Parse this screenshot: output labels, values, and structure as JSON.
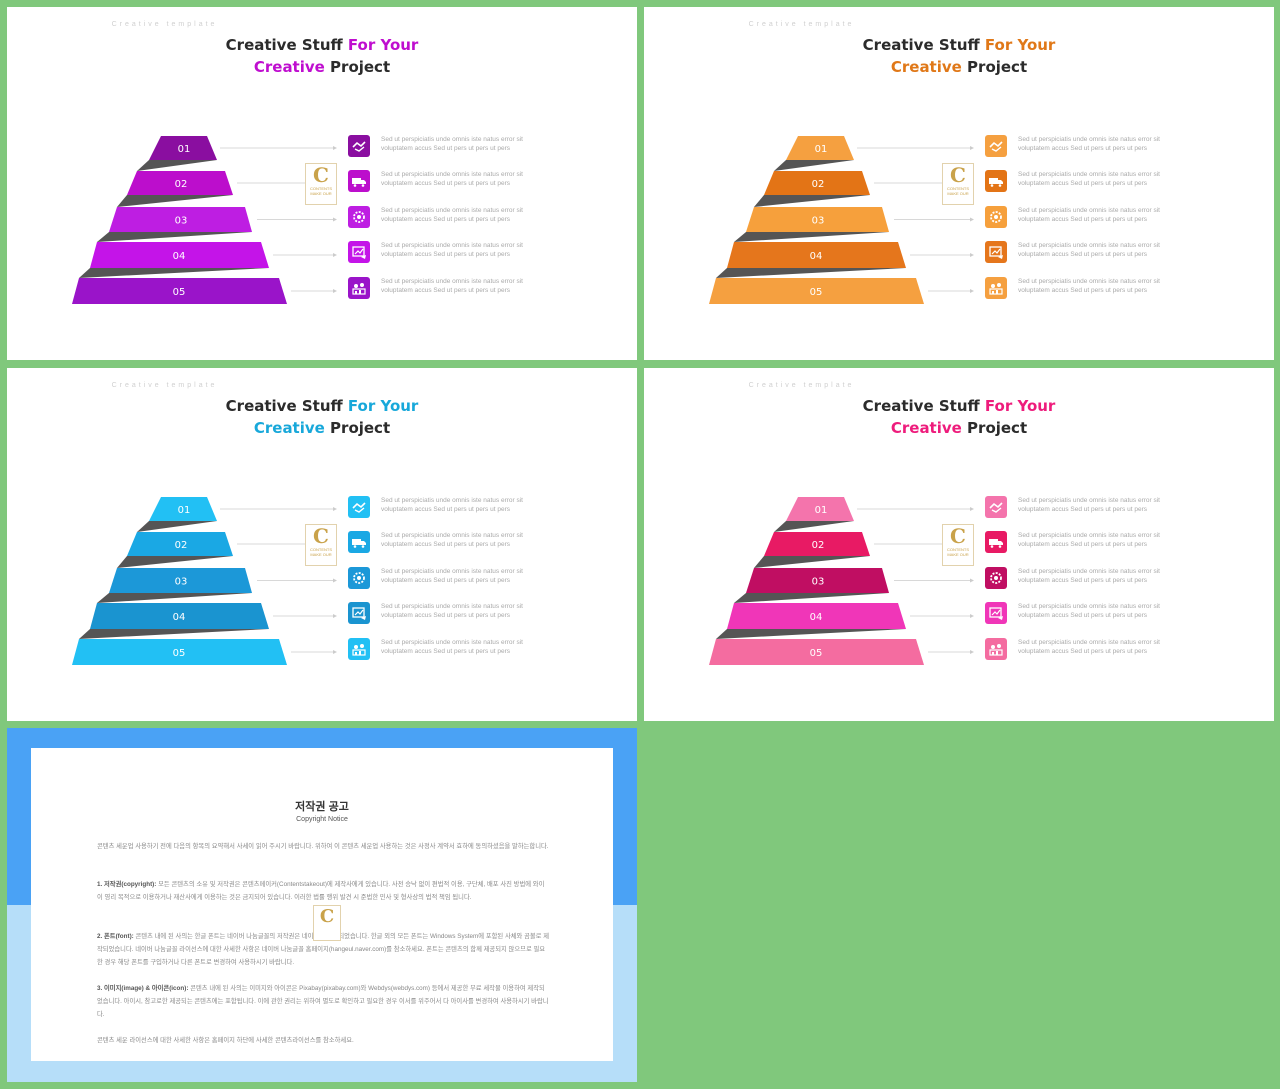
{
  "slides": [
    {
      "kicker": "Creative  template",
      "accent": "#bf0ecf",
      "title_parts": [
        "Creative Stuff ",
        "For Your",
        "Creative",
        " Project"
      ],
      "colors": [
        "#8a0ea0",
        "#bc0ecc",
        "#be1ee2",
        "#c414e8",
        "#9a14c9"
      ]
    },
    {
      "kicker": "Creative  template",
      "accent": "#e07818",
      "title_parts": [
        "Creative Stuff ",
        "For Your",
        "Creative",
        " Project"
      ],
      "colors": [
        "#f5a040",
        "#e37416",
        "#f6a03c",
        "#e5761c",
        "#f5a040"
      ]
    },
    {
      "kicker": "Creative  template",
      "accent": "#18a8da",
      "title_parts": [
        "Creative Stuff ",
        "For Your",
        "Creative",
        " Project"
      ],
      "colors": [
        "#22c0f4",
        "#1aa8e4",
        "#1c98d8",
        "#1a94d0",
        "#22c0f4"
      ]
    },
    {
      "kicker": "Creative  template",
      "accent": "#ee1c7c",
      "title_parts": [
        "Creative Stuff ",
        "For Your",
        "Creative",
        " Project"
      ],
      "colors": [
        "#f474ac",
        "#e81a64",
        "#c00e62",
        "#f036b8",
        "#f46ca0"
      ]
    }
  ],
  "levels": [
    "01",
    "02",
    "03",
    "04",
    "05"
  ],
  "item_text": [
    "Sed ut perspiciatis unde omnis  iste natus error sit",
    "voluptatem accus Sed ut pers ut pers ut pers"
  ],
  "badge": {
    "letter": "C",
    "text1": "CONTENTS",
    "text2": "MAKE  OUR"
  },
  "icons": [
    "handshake-icon",
    "truck-icon",
    "gear-icon",
    "chart-icon",
    "team-icon"
  ],
  "copyright": {
    "title": "저작권 공고",
    "subtitle": "Copyright Notice",
    "p1": "콘텐츠 세운업 사용하기 전에 다음의 항목의 요약해서 사세이 읽어 주시기 바랍니다. 위하여 이 콘텐츠 세운업 사용하는 것은 사정사 계약서 효하에 동의하셨음을 말하는합니다.",
    "p2_bold": "1. 저작권(copyright):",
    "p2": " 모든 콘텐츠의 소유 및 저작권은 콘텐츠메이커(Contentstakeout)에 제작사에게 있습니다. 사전 승낙 없이 편법적 이용, 구단체, 배포 사진 방법에 와이이 영리 목적으로 이용하거나 재산사에게 이용하는 것은 금지되어 있습니다. 이러한 법률 행위 발견 시 준법한 민사 및 형사상의 법적 책임 됩니다.",
    "p3_bold": "2. 폰트(font):",
    "p3": " 콘텐츠 내에 된 사의는 한글 폰트는 네이버 나눔글꼴의 저작권은 네이버에 제작되었습니다. 한글 외의 모든 폰트는 Windows System에 포함된 사체와 곰볼로 제작되었습니다. 네이버 나눔글꼴 라이선스에 대한 사세한 사항은 네이버 나눔글꼴 홈페이지(hangeul.naver.com)를 참소하세요. 폰트는 콘텐츠의 함께 제공되지 않으므로 필요한 경우 해당 폰트를 구입하거나 다른 폰트로 변경하여 사용하시기 바랍니다.",
    "p4_bold": "3. 이미지(image) & 아이콘(icon):",
    "p4": " 콘텐츠 내에 된 사의는 이미지와 아이콘은 Pixabay(pixabay.com)와 Webdys(webdys.com) 등에서 제공한 무료 세작물 이용하여 제작되었습니다. 아이시, 참고로한 제공되는 콘텐츠에는 포함됩니다. 이에 관한 권리는 위하여 별도로 확인하고 필요한 경우 이서를 위주어서 다 아이사를 변경하여 사용하시기 바랍니다.",
    "p5": "콘텐츠 세운 라이선스에 대한 사세한 사항은 홈페이지 하단에 사세한 콘텐츠라이선스를 참소하세요.",
    "colors": {
      "top": "#4aa2f5",
      "bottom": "#b6def9"
    }
  }
}
